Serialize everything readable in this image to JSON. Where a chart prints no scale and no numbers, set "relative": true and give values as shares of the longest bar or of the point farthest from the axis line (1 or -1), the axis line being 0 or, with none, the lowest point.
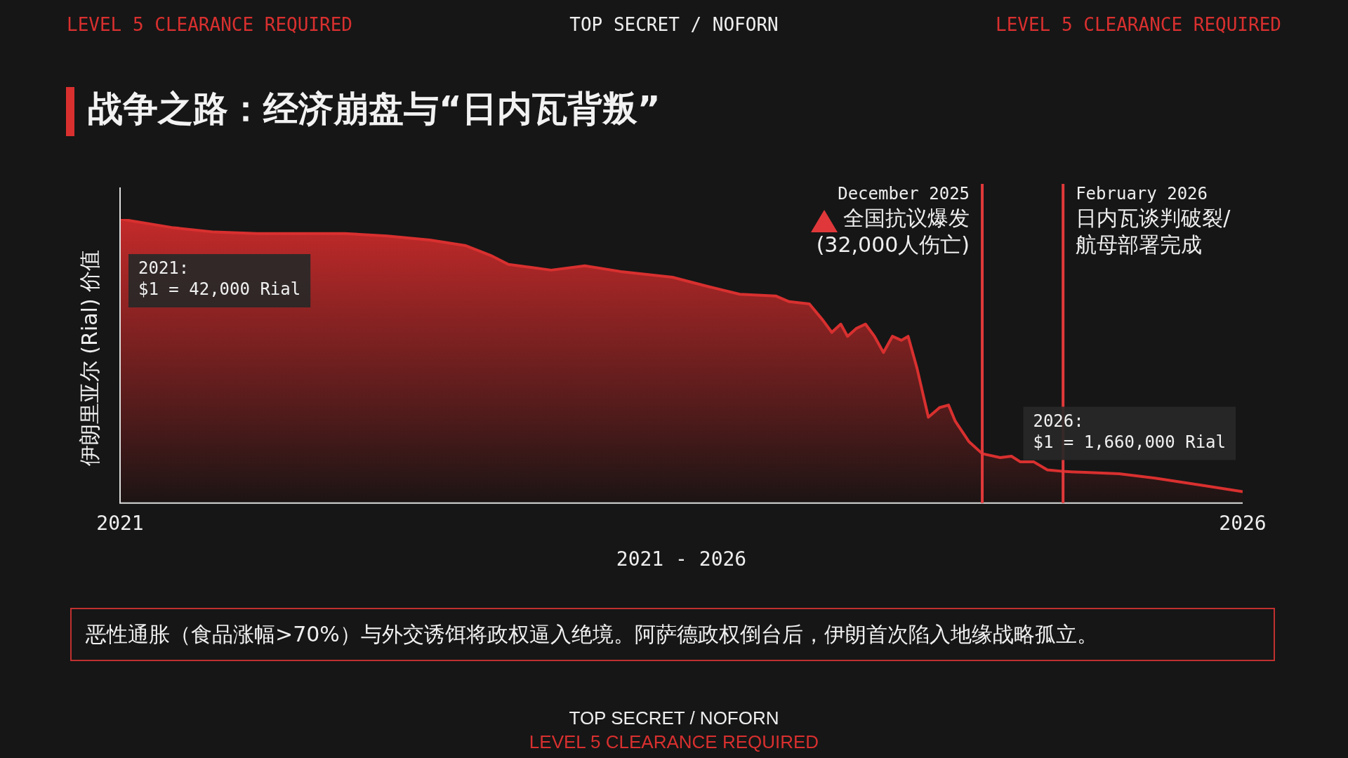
{
  "chart_data": {
    "type": "area",
    "title": "战争之路：经济崩盘与“日内瓦背叛”",
    "xlabel": "2021 - 2026",
    "ylabel": "伊朗里亚尔 (Rial) 价值",
    "relative": true,
    "color": "#d8302f",
    "x": [
      2021.0,
      2021.23,
      2021.42,
      2021.61,
      2022.0,
      2022.19,
      2022.38,
      2022.54,
      2022.65,
      2022.73,
      2022.92,
      2023.07,
      2023.23,
      2023.46,
      2023.61,
      2023.76,
      2023.92,
      2023.98,
      2024.07,
      2024.13,
      2024.17,
      2024.21,
      2024.24,
      2024.28,
      2024.32,
      2024.36,
      2024.4,
      2024.44,
      2024.48,
      2024.51,
      2024.55,
      2024.6,
      2024.65,
      2024.69,
      2024.72,
      2024.78,
      2024.84,
      2024.92,
      2024.97,
      2025.01,
      2025.07,
      2025.13,
      2025.21,
      2025.3,
      2025.45,
      2025.61,
      2025.84,
      2026.0
    ],
    "values": [
      1.0,
      0.97,
      0.954,
      0.949,
      0.949,
      0.94,
      0.926,
      0.906,
      0.872,
      0.84,
      0.82,
      0.835,
      0.815,
      0.795,
      0.764,
      0.735,
      0.729,
      0.709,
      0.701,
      0.644,
      0.601,
      0.63,
      0.587,
      0.615,
      0.63,
      0.587,
      0.53,
      0.587,
      0.573,
      0.587,
      0.473,
      0.302,
      0.336,
      0.345,
      0.288,
      0.217,
      0.174,
      0.16,
      0.165,
      0.145,
      0.145,
      0.117,
      0.111,
      0.108,
      0.103,
      0.088,
      0.06,
      0.04
    ],
    "xlim": [
      2021,
      2026
    ],
    "xticks": [
      2021,
      2026
    ],
    "grid": false,
    "legend": false,
    "ref_lines": [
      {
        "axis": "x",
        "value": 2024.84,
        "label": "December 2025\n全国抗议爆发\n(32,000人伤亡)",
        "color": "#e0383a"
      },
      {
        "axis": "x",
        "value": 2025.2,
        "label": "February 2026\n日内瓦谈判破裂/\n航母部署完成",
        "color": "#e0383a"
      }
    ],
    "annotations": [
      {
        "text": "2021:\n$1 = 42,000 Rial",
        "x": 2021,
        "y": 1.0
      },
      {
        "text": "2026:\n$1 = 1,660,000 Rial",
        "x": 2026,
        "y": 0.04
      },
      "LEVEL 5 CLEARANCE REQUIRED",
      "TOP SECRET / NOFORN",
      "LEVEL 5 CLEARANCE REQUIRED",
      "恶性通胀（食品涨幅>70%）与外交诱饵将政权逼入绝境。阿萨德政权倒台后，伊朗首次陷入地缘战略孤立。",
      "TOP SECRET / NOFORN",
      "LEVEL 5 CLEARANCE REQUIRED"
    ]
  }
}
